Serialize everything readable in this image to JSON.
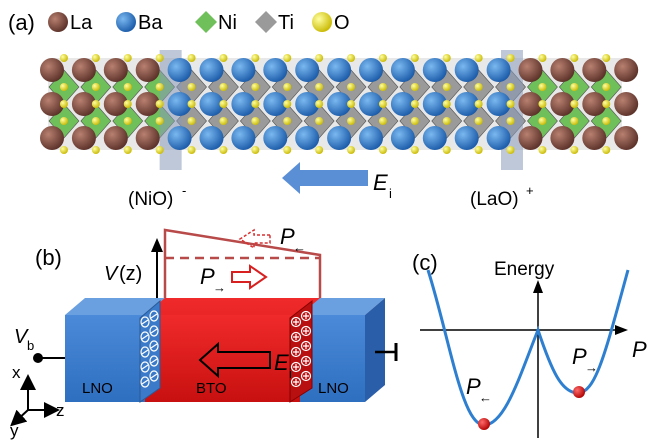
{
  "panel_a": {
    "label": "(a)",
    "legend": [
      {
        "name": "La",
        "color": "#7a4a3e",
        "shape": "circle"
      },
      {
        "name": "Ba",
        "color": "#2f7fd0",
        "shape": "circle"
      },
      {
        "name": "Ni",
        "color": "#6fbf5a",
        "shape": "diamond"
      },
      {
        "name": "Ti",
        "color": "#9a9a9a",
        "shape": "diamond"
      },
      {
        "name": "O",
        "color": "#f2e21a",
        "shape": "circle"
      }
    ],
    "interface_left": {
      "main": "(NiO)",
      "charge": "-"
    },
    "interface_right": {
      "main": "(LaO)",
      "charge": "+"
    },
    "field": {
      "main": "E",
      "sub": "i"
    }
  },
  "panel_b": {
    "label": "(b)",
    "potential": {
      "main": "V",
      "rest": "(z)"
    },
    "p_left": {
      "main": "P",
      "sub": "←"
    },
    "p_right": {
      "main": "P",
      "sub": "→"
    },
    "field": {
      "main": "E",
      "sub": "i"
    },
    "bias": {
      "main": "V",
      "sub": "b"
    },
    "block_labels": {
      "left": "LNO",
      "middle": "BTO",
      "right": "LNO"
    },
    "axes": {
      "x": "x",
      "y": "y",
      "z": "z"
    }
  },
  "panel_c": {
    "label": "(c)",
    "y_axis": "Energy",
    "x_axis": "P",
    "min_left": {
      "main": "P",
      "sub": "←"
    },
    "min_right": {
      "main": "P",
      "sub": "→"
    }
  },
  "colors": {
    "la": "#7a4a3e",
    "ba": "#2f7fd0",
    "ni": "#6fbf5a",
    "ti": "#9a9a9a",
    "o": "#f2e21a",
    "lno": "#3f7fcf",
    "bto": "#e01818",
    "curve": "#2e7fd0",
    "potential": "#b84a4a",
    "arrow": "#5a8fd6"
  }
}
